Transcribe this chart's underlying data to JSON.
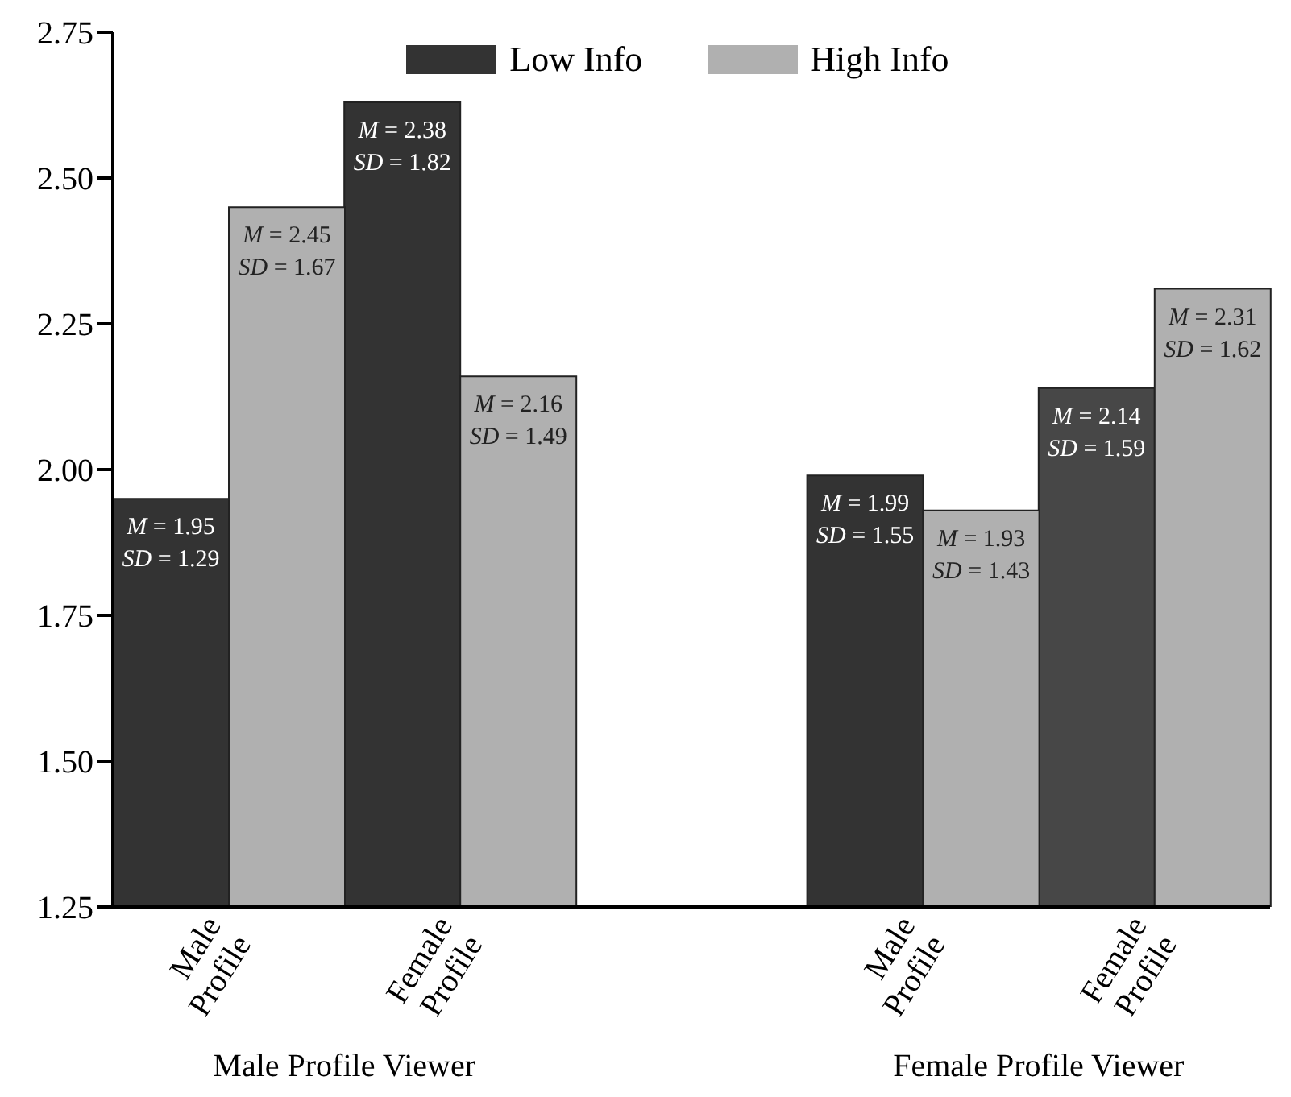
{
  "chart_data": {
    "type": "bar",
    "categories": [
      "Male Profile",
      "Female Profile",
      null,
      "Male Profile",
      "Female Profile"
    ],
    "series": [
      {
        "name": "Low Info",
        "color": "#333333",
        "colors": [
          "#333333",
          "#333333",
          "#333333",
          "#333333",
          "#474747"
        ],
        "values": [
          1.95,
          2.63,
          null,
          1.99,
          2.14
        ],
        "value_labels": [
          "M = 1.95\nSD = 1.29",
          "M = 2.38\nSD = 1.82",
          null,
          "M = 1.99\nSD = 1.55",
          "M = 2.14\nSD = 1.59"
        ]
      },
      {
        "name": "High Info",
        "color": "#b0b0b0",
        "values": [
          2.45,
          2.16,
          null,
          1.93,
          2.31
        ],
        "value_labels": [
          "M = 2.45\nSD = 1.67",
          "M = 2.16\nSD = 1.49",
          null,
          "M = 1.93\nSD = 1.43",
          "M = 2.31\nSD = 1.62"
        ]
      }
    ],
    "ylim": [
      1.25,
      2.75
    ],
    "yticks": [
      1.25,
      {
        "value": 1.5,
        "label": "1.50"
      },
      1.75,
      {
        "value": 2,
        "label": "2.00"
      },
      2.25,
      {
        "value": 2.5,
        "label": "2.50"
      },
      2.75
    ],
    "grid": false,
    "legend": "top",
    "annotations": [
      "Male Profile Viewer",
      "Female Profile Viewer"
    ]
  }
}
